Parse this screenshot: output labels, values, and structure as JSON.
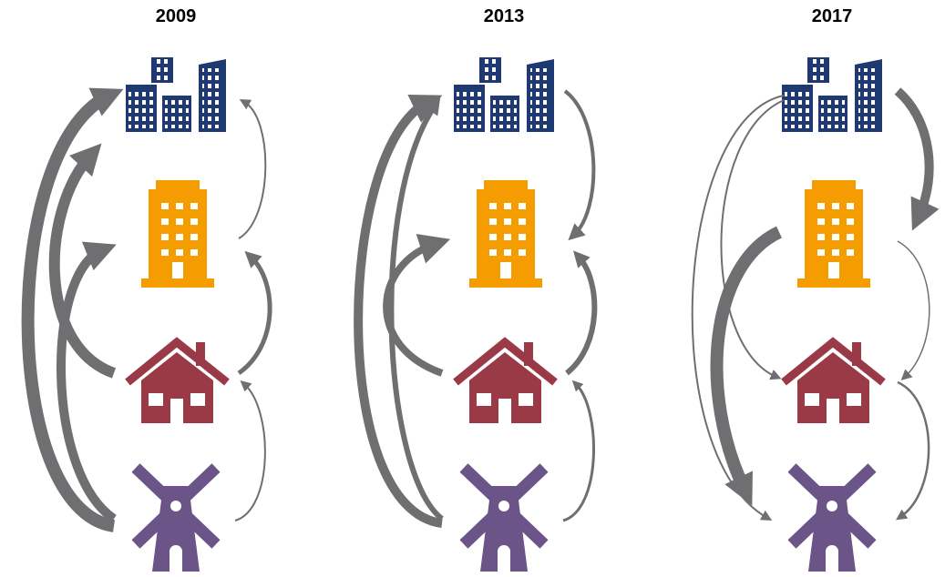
{
  "columns": [
    {
      "title": "2009"
    },
    {
      "title": "2013"
    },
    {
      "title": "2017"
    }
  ]
}
